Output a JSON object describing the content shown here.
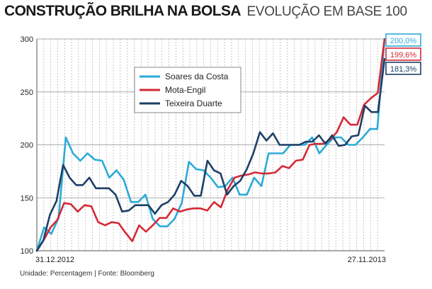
{
  "title": "CONSTRUÇÃO BRILHA NA BOLSA",
  "subtitle": "EVOLUÇÃO EM BASE 100",
  "footer": "Unidade: Percentagem | Fonte: Bloomberg",
  "chart_data": {
    "type": "line",
    "ylim": [
      100,
      300
    ],
    "yticks": [
      100,
      150,
      200,
      250,
      300
    ],
    "x_start_label": "31.12.2012",
    "x_end_label": "27.11.2013",
    "grid": "vertical-dashed",
    "legend_position": "top-left",
    "series": [
      {
        "name": "Soares da Costa",
        "color": "#2aabd7",
        "end_label": "200,0%",
        "values": [
          100,
          122,
          116,
          131,
          207,
          192,
          185,
          192,
          186,
          185,
          169,
          176,
          167,
          146,
          146,
          153,
          130,
          123,
          123,
          130,
          145,
          184,
          177,
          176,
          169,
          160,
          161,
          169,
          153,
          153,
          169,
          161,
          192,
          192,
          192,
          200,
          200,
          200,
          207,
          192,
          200,
          207,
          207,
          200,
          200,
          207,
          215,
          215,
          300
        ]
      },
      {
        "name": "Mota-Engil",
        "color": "#d42a36",
        "end_label": "199,6%",
        "values": [
          100,
          110,
          122,
          129,
          145,
          144,
          137,
          143,
          142,
          127,
          124,
          127,
          126,
          117,
          109,
          124,
          118,
          124,
          131,
          131,
          140,
          137,
          139,
          140,
          140,
          138,
          146,
          141,
          158,
          169,
          171,
          172,
          174,
          173,
          173,
          174,
          180,
          178,
          185,
          186,
          200,
          201,
          201,
          205,
          212,
          226,
          219,
          219,
          238,
          244,
          249,
          300
        ]
      },
      {
        "name": "Teixeira Duarte",
        "color": "#1e3f66",
        "end_label": "181,3%",
        "values": [
          100,
          110,
          134,
          147,
          181,
          169,
          162,
          162,
          169,
          159,
          159,
          159,
          153,
          137,
          138,
          143,
          143,
          143,
          135,
          143,
          146,
          153,
          166,
          161,
          152,
          152,
          185,
          176,
          173,
          153,
          161,
          166,
          177,
          192,
          212,
          204,
          211,
          200,
          200,
          200,
          200,
          203,
          203,
          209,
          201,
          209,
          199,
          200,
          208,
          209,
          237,
          231,
          231,
          281
        ]
      }
    ]
  }
}
